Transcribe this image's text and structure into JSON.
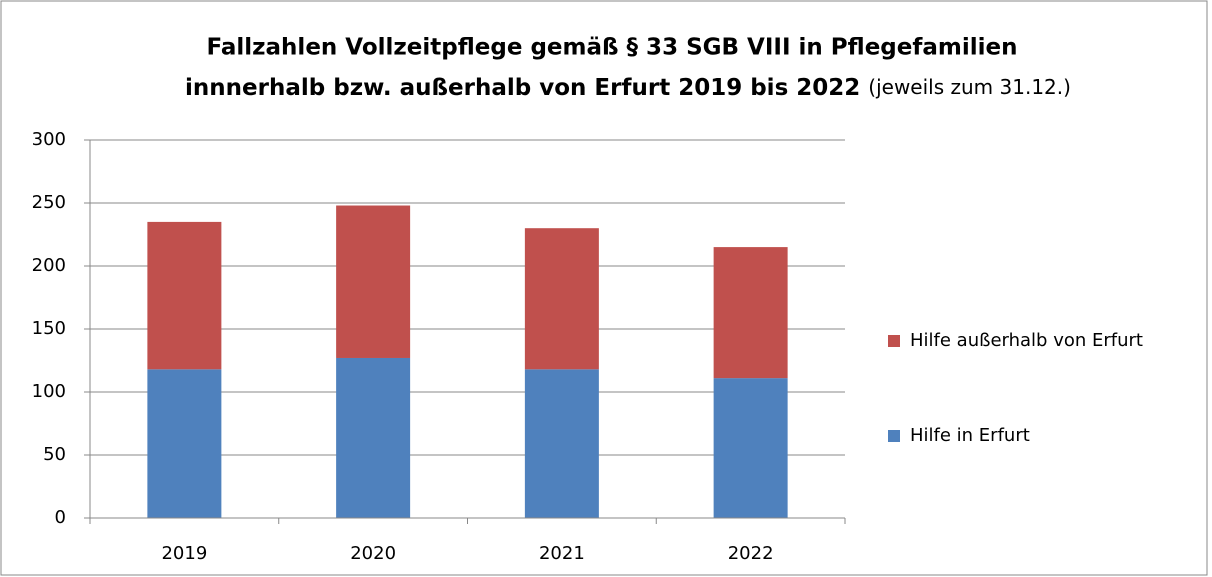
{
  "chart_data": {
    "type": "stacked_bar",
    "title": "Fallzahlen Vollzeitpflege gemäß § 33 SGB VIII in Pflegefamilien",
    "title_line2": "innnerhalb bzw. außerhalb von Erfurt 2019 bis 2022",
    "subtitle": "(jeweils zum 31.12.)",
    "categories": [
      "2019",
      "2020",
      "2021",
      "2022"
    ],
    "series": [
      {
        "name": "Hilfe in Erfurt",
        "color": "#4f81bd",
        "values": [
          118,
          127,
          118,
          111
        ]
      },
      {
        "name": "Hilfe außerhalb von Erfurt",
        "color": "#c0504d",
        "values": [
          117,
          121,
          112,
          104
        ]
      }
    ],
    "ylim": [
      0,
      300
    ],
    "yticks": [
      0,
      50,
      100,
      150,
      200,
      250,
      300
    ],
    "grid": true,
    "legend": "right"
  }
}
